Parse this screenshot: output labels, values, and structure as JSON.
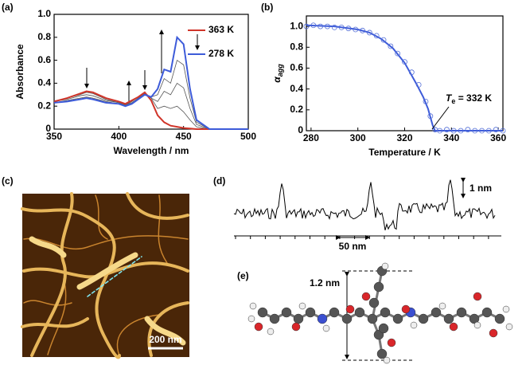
{
  "chart_data": [
    {
      "type": "line",
      "panel": "(a)",
      "xlabel": "Wavelength / nm",
      "ylabel": "Absorbance",
      "x": [
        350,
        360,
        370,
        375,
        380,
        390,
        400,
        405,
        410,
        415,
        420,
        425,
        430,
        435,
        440,
        445,
        450,
        455,
        460,
        470,
        500
      ],
      "series": [
        {
          "color": "#555555",
          "values": [
            0.24,
            0.27,
            0.3,
            0.32,
            0.31,
            0.26,
            0.23,
            0.21,
            0.24,
            0.28,
            0.32,
            0.27,
            0.18,
            0.2,
            0.18,
            0.2,
            0.15,
            0.08,
            0.02,
            0,
            0
          ]
        },
        {
          "color": "#555555",
          "values": [
            0.24,
            0.26,
            0.29,
            0.3,
            0.29,
            0.25,
            0.23,
            0.21,
            0.23,
            0.27,
            0.31,
            0.27,
            0.24,
            0.33,
            0.3,
            0.4,
            0.36,
            0.18,
            0.04,
            0,
            0
          ]
        },
        {
          "color": "#555555",
          "values": [
            0.23,
            0.25,
            0.27,
            0.28,
            0.27,
            0.24,
            0.22,
            0.2,
            0.22,
            0.26,
            0.3,
            0.28,
            0.3,
            0.44,
            0.4,
            0.6,
            0.56,
            0.27,
            0.06,
            0,
            0
          ]
        },
        {
          "name": "363 K",
          "color": "#d0352a",
          "values": [
            0.24,
            0.27,
            0.31,
            0.33,
            0.32,
            0.27,
            0.24,
            0.22,
            0.25,
            0.28,
            0.32,
            0.25,
            0.12,
            0.06,
            0.03,
            0.02,
            0.01,
            0.005,
            0,
            0,
            0
          ]
        },
        {
          "name": "278 K",
          "color": "#3d5bd9",
          "values": [
            0.23,
            0.24,
            0.26,
            0.27,
            0.26,
            0.23,
            0.22,
            0.2,
            0.22,
            0.26,
            0.3,
            0.28,
            0.35,
            0.52,
            0.5,
            0.8,
            0.74,
            0.35,
            0.08,
            0,
            0
          ]
        }
      ],
      "xlim": [
        350,
        500
      ],
      "xticks": [
        350,
        400,
        450,
        500
      ],
      "ylim": [
        0,
        1
      ],
      "yticks": [
        0,
        0.2,
        0.4,
        0.6,
        0.8,
        {
          "value": 1,
          "label": "1.0"
        }
      ],
      "legend": "top-right"
    },
    {
      "type": "scatter",
      "panel": "(b)",
      "xlabel": "Temperature / K",
      "ylabel": {
        "symbol": "α",
        "subscript": "agg"
      },
      "annotation": {
        "symbol": "T",
        "subscript": "e",
        "text": " = 332 K"
      },
      "series": [
        {
          "style": "line",
          "color": "#3d5bd9",
          "x": [
            278,
            290,
            300,
            305,
            310,
            315,
            320,
            325,
            328,
            330,
            332,
            333,
            340,
            350,
            362
          ],
          "values": [
            1.01,
            1.0,
            0.97,
            0.94,
            0.88,
            0.79,
            0.65,
            0.45,
            0.32,
            0.21,
            0.05,
            0,
            0,
            0,
            0
          ]
        },
        {
          "style": "marker",
          "color": "#5570d8",
          "x": [
            278,
            281,
            284,
            287,
            290,
            293,
            296,
            299,
            302,
            305,
            308,
            311,
            314,
            317,
            320,
            323,
            326,
            329,
            331,
            333,
            335,
            338,
            341,
            344,
            347,
            350,
            353,
            356,
            359,
            362
          ],
          "values": [
            1.0,
            1.01,
            1.0,
            1.0,
            0.99,
            0.99,
            0.98,
            0.97,
            0.96,
            0.94,
            0.91,
            0.87,
            0.81,
            0.74,
            0.66,
            0.56,
            0.44,
            0.28,
            0.14,
            0.01,
            0,
            0.01,
            0,
            0,
            0.01,
            0,
            0,
            0,
            0.01,
            0
          ]
        }
      ],
      "xlim": [
        278,
        362
      ],
      "xticks": [
        280,
        300,
        320,
        340,
        360
      ],
      "ylim": [
        0,
        1.1
      ],
      "yticks": [
        0,
        0.2,
        0.4,
        0.6,
        0.8,
        {
          "value": 1,
          "label": "1.0"
        }
      ]
    }
  ],
  "afm_image": {
    "panel": "(c)",
    "scale_bar": "200 nm"
  },
  "height_profile": {
    "panel": "(d)",
    "vertical_scale": "1 nm",
    "horizontal_scale": "50 nm"
  },
  "molecule": {
    "panel": "(e)",
    "dimension": "1.2 nm"
  }
}
